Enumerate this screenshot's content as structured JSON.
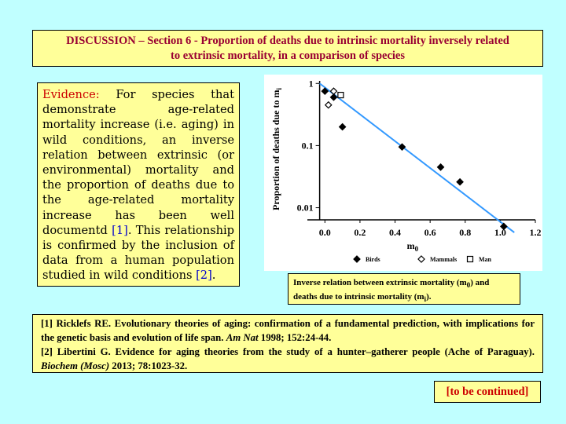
{
  "title": {
    "line1": "DISCUSSION – Section 6 - Proportion of deaths due to intrinsic mortality inversely related",
    "line2": "to extrinsic mortality, in a comparison of species"
  },
  "evidence": {
    "label": "Evidence:",
    "text1": " For species that demonstrate age-related mortality increase (i.e. aging) in wild conditions, an inverse relation between extrinsic (or environmental) mortality and the proportion of deaths due to the age-related mortality increase has been well documentd ",
    "ref1": "[1]",
    "text2": ". This relationship is confirmed by the inclusion of data from a human population studied in wild conditions ",
    "ref2": "[2]",
    "text3": "."
  },
  "caption": {
    "part1": "Inverse relation between extrinsic mortality (m",
    "sub1": "0",
    "part2": ") and deaths due to intrinsic mortality (m",
    "sub2": "i",
    "part3": ")."
  },
  "references": [
    {
      "id": "[1]",
      "authors": " Ricklefs RE. Evolutionary theories of aging: confirmation of a fundamental prediction, with implications for the genetic basis and evolution of life span. ",
      "journal": "Am Nat",
      "details": " 1998; 152:24-44."
    },
    {
      "id": "[2]",
      "authors": " Libertini G. Evidence for aging theories from the study of a hunter–gatherer people (Ache of Paraguay). ",
      "journal": "Biochem (Mosc)",
      "details": " 2013; 78:1023-32."
    }
  ],
  "continued": "[to be continued]",
  "colors": {
    "background": "#c0ffff",
    "box": "#ffff99",
    "title_text": "#990033",
    "accent_red": "#cc0000",
    "ref_blue": "#0000cc",
    "fit_line": "#3399ff"
  },
  "chart_data": {
    "type": "scatter",
    "xlabel": "m0",
    "ylabel": "Proportion of deaths due to mi",
    "x_scale": "linear",
    "y_scale": "log",
    "xlim": [
      -0.1,
      1.2
    ],
    "ylim": [
      0.0045,
      1.2
    ],
    "x_ticks": [
      "0.0",
      "0.2",
      "0.4",
      "0.6",
      "0.8",
      "1.0",
      "1.2"
    ],
    "x_tick_values": [
      0.0,
      0.2,
      0.4,
      0.6,
      0.8,
      1.0,
      1.2
    ],
    "y_ticks": [
      "1",
      "0.1",
      "0.01"
    ],
    "y_tick_values": [
      1,
      0.1,
      0.01
    ],
    "legend_position": "bottom",
    "series": [
      {
        "name": "Birds",
        "marker": "diamond-filled",
        "points": [
          [
            0.0,
            0.75
          ],
          [
            0.05,
            0.6
          ],
          [
            0.1,
            0.2
          ],
          [
            0.44,
            0.095
          ],
          [
            0.66,
            0.045
          ],
          [
            0.77,
            0.026
          ],
          [
            1.02,
            0.005
          ]
        ]
      },
      {
        "name": "Mammals",
        "marker": "diamond-open",
        "points": [
          [
            0.02,
            0.45
          ],
          [
            0.05,
            0.75
          ]
        ]
      },
      {
        "name": "Man",
        "marker": "square-open",
        "points": [
          [
            0.09,
            0.65
          ]
        ]
      }
    ],
    "fit_line": {
      "from": [
        -0.03,
        1.0
      ],
      "to": [
        1.08,
        0.004
      ]
    }
  }
}
